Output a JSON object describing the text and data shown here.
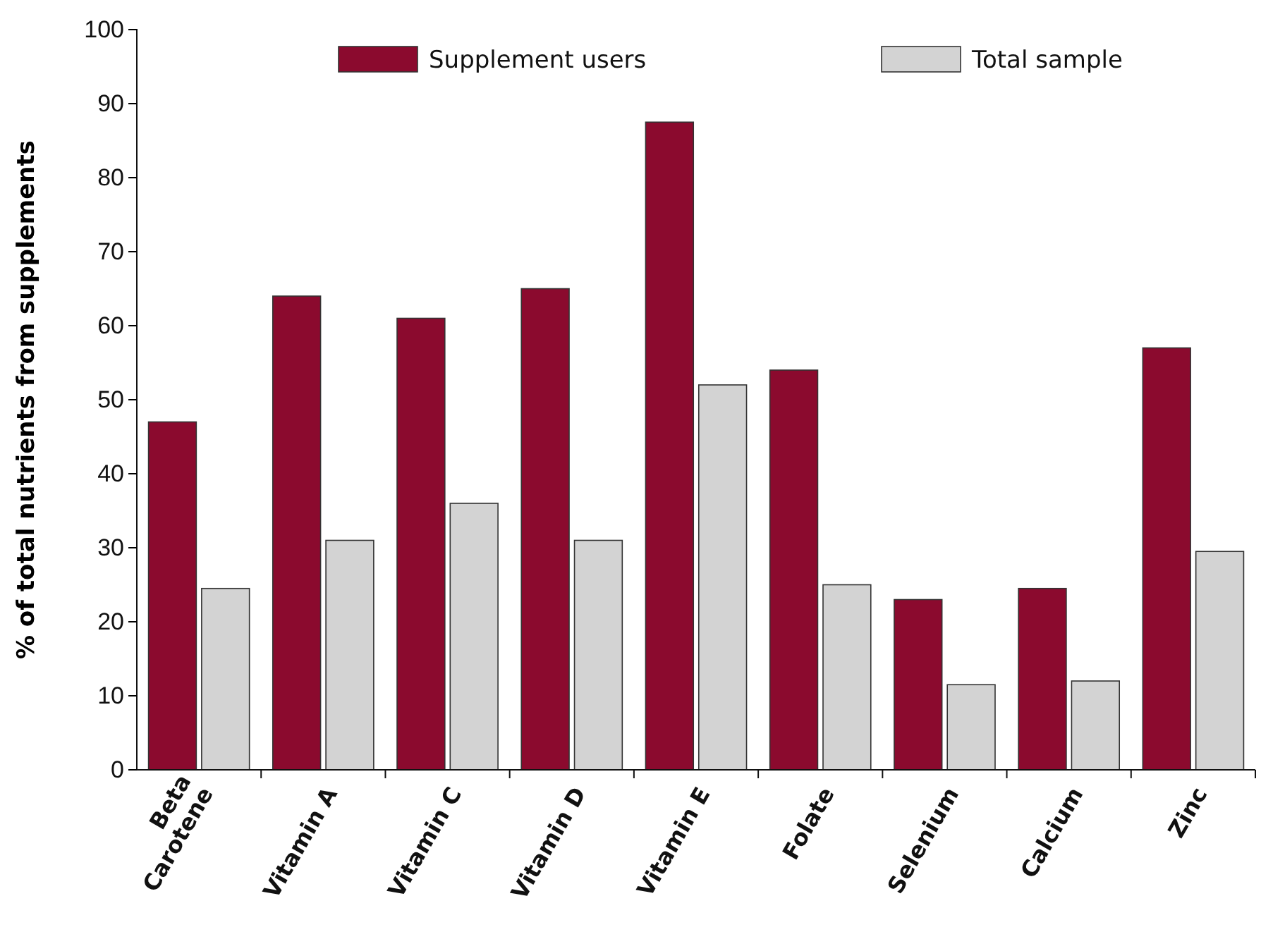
{
  "chart_data": {
    "type": "bar",
    "ylabel": "% of total nutrients from supplements",
    "categories": [
      "Beta Carotene",
      "Vitamin A",
      "Vitamin C",
      "Vitamin D",
      "Vitamin E",
      "Folate",
      "Selenium",
      "Calcium",
      "Zinc"
    ],
    "series": [
      {
        "name": "Supplement users",
        "color": "#8b0a2e",
        "values": [
          47,
          64,
          61,
          65,
          87.5,
          54,
          23,
          24.5,
          57
        ]
      },
      {
        "name": "Total sample",
        "color": "#d3d3d3",
        "values": [
          24.5,
          31,
          36,
          31,
          52,
          25,
          11.5,
          12,
          29.5
        ]
      }
    ],
    "ylim": [
      0,
      100
    ],
    "yticks": [
      0,
      10,
      20,
      30,
      40,
      50,
      60,
      70,
      80,
      90,
      100
    ],
    "grid": false,
    "legend": "top"
  }
}
